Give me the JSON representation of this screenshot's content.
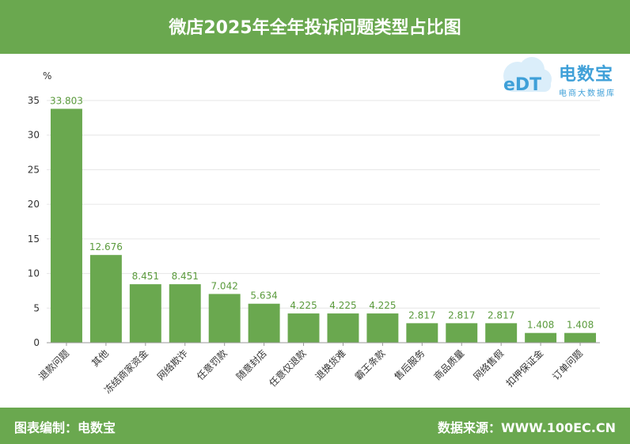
{
  "header": {
    "title": "微店2025年全年投诉问题类型占比图"
  },
  "logo": {
    "name": "电数宝",
    "sub": "电商大数据库",
    "mark": "eDT"
  },
  "footer": {
    "left": "图表编制：电数宝",
    "right": "数据来源：WWW.100EC.CN"
  },
  "colors": {
    "brand": "#6aa84f",
    "bar": "#6aa84f",
    "label": "#5a9a3c",
    "logo": "#3fa0d8"
  },
  "chart_data": {
    "type": "bar",
    "title": "微店2025年全年投诉问题类型占比图",
    "ylabel": "%",
    "ylim": [
      0,
      35
    ],
    "yticks": [
      0,
      5,
      10,
      15,
      20,
      25,
      30,
      35
    ],
    "grid": true,
    "categories": [
      "退款问题",
      "其他",
      "冻结商家资金",
      "网络欺诈",
      "任意罚款",
      "随意封店",
      "任意仅退款",
      "退换货难",
      "霸王条款",
      "售后服务",
      "商品质量",
      "网络售假",
      "扣押保证金",
      "订单问题"
    ],
    "values": [
      33.803,
      12.676,
      8.451,
      8.451,
      7.042,
      5.634,
      4.225,
      4.225,
      4.225,
      2.817,
      2.817,
      2.817,
      1.408,
      1.408
    ],
    "labels": [
      "33.803",
      "12.676",
      "8.451",
      "8.451",
      "7.042",
      "5.634",
      "4.225",
      "4.225",
      "4.225",
      "2.817",
      "2.817",
      "2.817",
      "1.408",
      "1.408"
    ]
  }
}
